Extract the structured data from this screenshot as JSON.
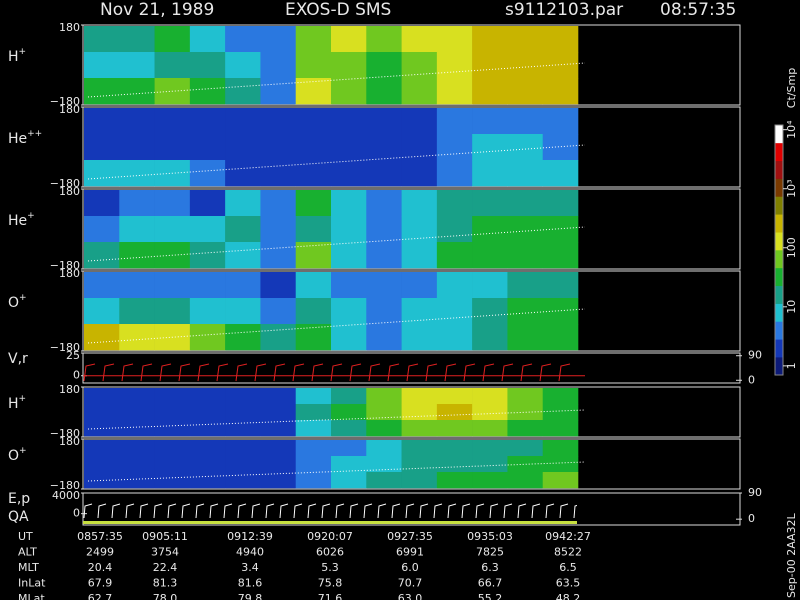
{
  "chart_data": {
    "type": "spectrogram",
    "title_left": "Nov 21, 1989",
    "title_mid": "EXOS-D SMS",
    "file": "s9112103.par",
    "time": "08:57:35",
    "panels": [
      {
        "type": "heatmap",
        "label": "H",
        "sup": "+",
        "ylim": [
          -180,
          180
        ],
        "yticks": [
          180,
          {
            "value": -180,
            "label": "−180"
          }
        ],
        "values": [
          [
            20,
            15,
            30,
            10,
            5,
            3,
            80,
            120,
            60,
            100,
            150,
            300,
            250,
            200
          ],
          [
            10,
            8,
            20,
            15,
            10,
            3,
            60,
            90,
            40,
            60,
            120,
            200,
            250,
            300
          ],
          [
            30,
            40,
            50,
            40,
            20,
            5,
            100,
            80,
            40,
            50,
            150,
            300,
            300,
            250
          ]
        ]
      },
      {
        "type": "heatmap",
        "label": "He",
        "sup": "++",
        "ylim": [
          -180,
          180
        ],
        "yticks": [
          180,
          {
            "value": -180,
            "label": "−180"
          }
        ],
        "values": [
          [
            2,
            2,
            2,
            2,
            2,
            2,
            2,
            2,
            2,
            2,
            3,
            5,
            5,
            4
          ],
          [
            2,
            2,
            2,
            2,
            2,
            2,
            2,
            2,
            2,
            2,
            4,
            6,
            6,
            5
          ],
          [
            8,
            10,
            6,
            4,
            2,
            2,
            2,
            2,
            2,
            2,
            5,
            8,
            8,
            6
          ]
        ]
      },
      {
        "type": "heatmap",
        "label": "He",
        "sup": "+",
        "ylim": [
          -180,
          180
        ],
        "yticks": [
          180,
          {
            "value": -180,
            "label": "−180"
          }
        ],
        "values": [
          [
            2,
            3,
            3,
            2,
            10,
            3,
            30,
            8,
            3,
            10,
            15,
            20,
            20,
            15
          ],
          [
            5,
            8,
            10,
            6,
            12,
            3,
            20,
            6,
            3,
            8,
            20,
            30,
            30,
            25
          ],
          [
            20,
            40,
            40,
            15,
            10,
            3,
            50,
            8,
            4,
            10,
            25,
            30,
            30,
            25
          ]
        ]
      },
      {
        "type": "heatmap",
        "label": "O",
        "sup": "+",
        "ylim": [
          -180,
          180
        ],
        "yticks": [
          180,
          {
            "value": -180,
            "label": "−180"
          }
        ],
        "values": [
          [
            3,
            4,
            4,
            3,
            3,
            2,
            10,
            5,
            3,
            5,
            8,
            10,
            20,
            15
          ],
          [
            10,
            15,
            15,
            10,
            6,
            3,
            20,
            6,
            4,
            6,
            10,
            15,
            25,
            30
          ],
          [
            200,
            150,
            150,
            80,
            40,
            15,
            30,
            10,
            5,
            8,
            10,
            15,
            30,
            30
          ]
        ]
      },
      {
        "type": "line",
        "labels": [
          "V,r"
        ],
        "ylim": [
          -8,
          25
        ],
        "yticks": [
          25,
          0
        ],
        "y2lim": [
          -10,
          100
        ],
        "y2ticks": [
          90,
          0
        ]
      },
      {
        "type": "heatmap",
        "label": "H",
        "sup": "+",
        "ylim": [
          -180,
          180
        ],
        "yticks": [
          180,
          {
            "value": -180,
            "label": "−180"
          }
        ],
        "values": [
          [
            2,
            2,
            2,
            2,
            2,
            2,
            10,
            20,
            60,
            100,
            150,
            100,
            60,
            40
          ],
          [
            2,
            2,
            2,
            2,
            2,
            2,
            15,
            30,
            80,
            150,
            200,
            150,
            80,
            40
          ],
          [
            2,
            2,
            2,
            2,
            2,
            2,
            10,
            15,
            40,
            60,
            80,
            60,
            40,
            30
          ]
        ]
      },
      {
        "type": "heatmap",
        "label": "O",
        "sup": "+",
        "ylim": [
          -180,
          180
        ],
        "yticks": [
          180,
          {
            "value": -180,
            "label": "−180"
          }
        ],
        "values": [
          [
            2,
            2,
            2,
            2,
            2,
            2,
            3,
            5,
            10,
            15,
            20,
            20,
            20,
            30
          ],
          [
            2,
            2,
            2,
            2,
            2,
            2,
            4,
            6,
            10,
            15,
            20,
            20,
            25,
            40
          ],
          [
            2,
            2,
            2,
            2,
            2,
            2,
            5,
            8,
            15,
            20,
            25,
            25,
            30,
            60
          ]
        ]
      },
      {
        "type": "line",
        "labels": [
          "E,p",
          "QA"
        ],
        "ylim": [
          -2200,
          4000
        ],
        "yticks": [
          4000,
          0
        ],
        "y2lim": [
          -20,
          90
        ],
        "y2ticks": [
          90,
          0
        ]
      }
    ],
    "colorbar": {
      "title": "Ct/Smp",
      "log": true,
      "lim": [
        0.7,
        12000
      ],
      "ticks": [
        1,
        10,
        100,
        {
          "value": 1000,
          "label": "10³"
        },
        {
          "value": 10000,
          "label": "10⁴"
        }
      ],
      "colors": [
        "#0c1a78",
        "#1438b8",
        "#2a78e0",
        "#20c0d0",
        "#18a088",
        "#18b030",
        "#70c820",
        "#d8e020",
        "#c8b400",
        "#808000",
        "#7a3a00",
        "#a01010",
        "#e00000",
        "#ffffff"
      ]
    }
  },
  "table": {
    "rows": [
      [
        "UT",
        "0857:35",
        "0905:11",
        "0912:39",
        "0920:07",
        "0927:35",
        "0935:03",
        "0942:27"
      ],
      [
        "ALT",
        "2499",
        "3754",
        "4940",
        "6026",
        "6991",
        "7825",
        "8522"
      ],
      [
        "MLT",
        "20.4",
        "22.4",
        "3.4",
        "5.3",
        "6.0",
        "6.3",
        "6.5"
      ],
      [
        "InLat",
        "67.9",
        "81.3",
        "81.6",
        "75.8",
        "70.7",
        "66.7",
        "63.5"
      ],
      [
        "MLat",
        "62.7",
        "78.0",
        "79.8",
        "71.6",
        "63.0",
        "55.2",
        "48.2"
      ]
    ]
  },
  "footer": "Sep-00 2AA32L"
}
